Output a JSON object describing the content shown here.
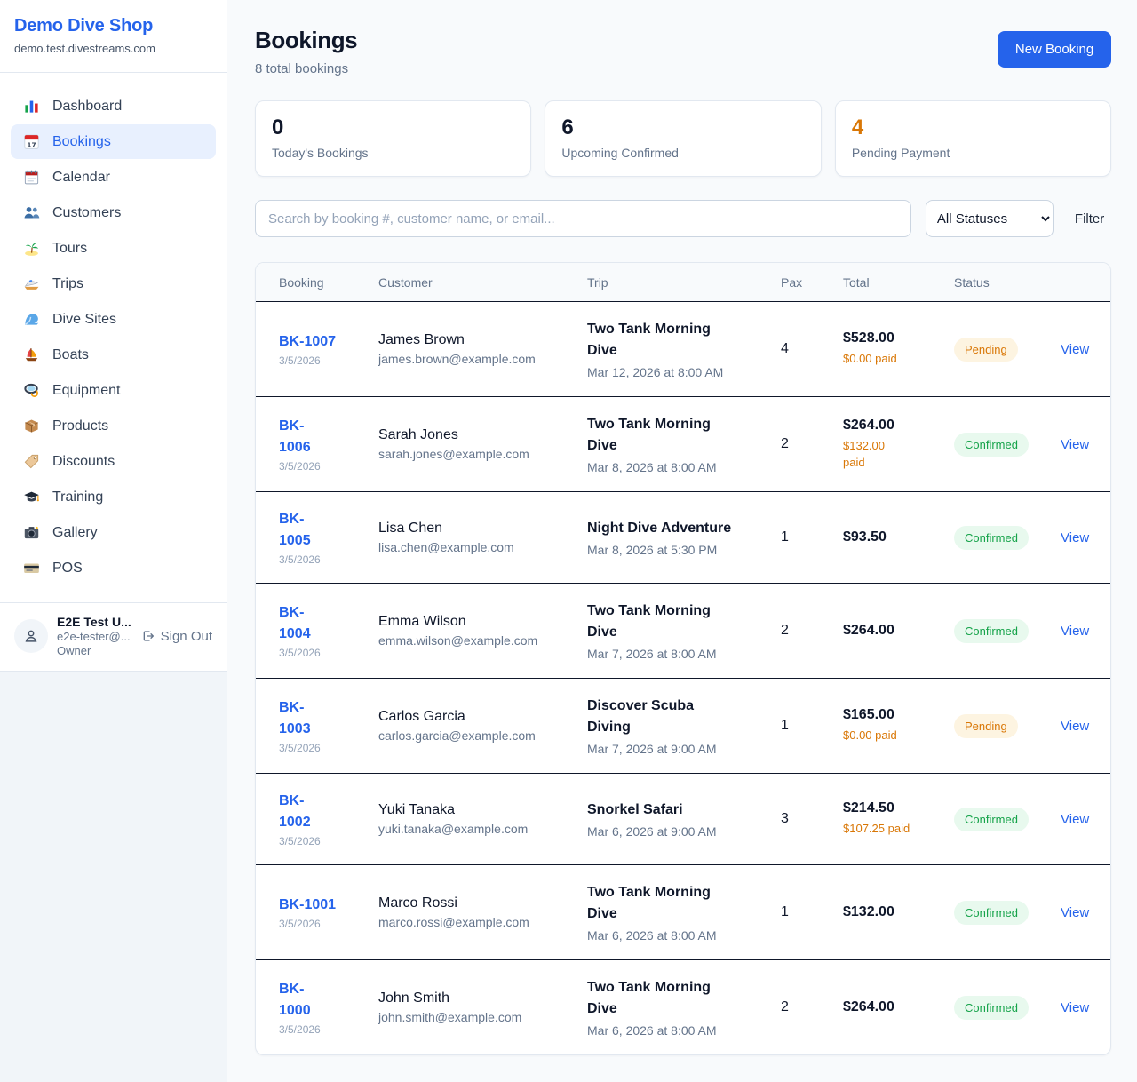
{
  "colors": {
    "accent": "#2563eb",
    "pending_text": "#d97706",
    "pending_bg": "#fdf4e1",
    "confirmed_text": "#16a34a",
    "confirmed_bg": "#e8f9ee",
    "stat_warning": "#d97706"
  },
  "sidebar": {
    "shop_name": "Demo Dive Shop",
    "domain": "demo.test.divestreams.com",
    "items": [
      {
        "icon": "bar-chart-icon",
        "label": "Dashboard",
        "active": false
      },
      {
        "icon": "calendar-17-icon",
        "label": "Bookings",
        "active": true
      },
      {
        "icon": "calendar-spiral-icon",
        "label": "Calendar",
        "active": false
      },
      {
        "icon": "users-icon",
        "label": "Customers",
        "active": false
      },
      {
        "icon": "island-icon",
        "label": "Tours",
        "active": false
      },
      {
        "icon": "speedboat-icon",
        "label": "Trips",
        "active": false
      },
      {
        "icon": "wave-icon",
        "label": "Dive Sites",
        "active": false
      },
      {
        "icon": "sailboat-icon",
        "label": "Boats",
        "active": false
      },
      {
        "icon": "dive-mask-icon",
        "label": "Equipment",
        "active": false
      },
      {
        "icon": "package-icon",
        "label": "Products",
        "active": false
      },
      {
        "icon": "tag-icon",
        "label": "Discounts",
        "active": false
      },
      {
        "icon": "grad-cap-icon",
        "label": "Training",
        "active": false
      },
      {
        "icon": "camera-icon",
        "label": "Gallery",
        "active": false
      },
      {
        "icon": "credit-card-icon",
        "label": "POS",
        "active": false
      }
    ],
    "user": {
      "name": "E2E Test U...",
      "email": "e2e-tester@...",
      "role": "Owner",
      "sign_out_label": "Sign Out"
    }
  },
  "header": {
    "title": "Bookings",
    "subtitle": "8 total bookings",
    "new_booking_label": "New Booking"
  },
  "stats": [
    {
      "value": "0",
      "label": "Today's Bookings",
      "value_color": "#0f172a"
    },
    {
      "value": "6",
      "label": "Upcoming Confirmed",
      "value_color": "#0f172a"
    },
    {
      "value": "4",
      "label": "Pending Payment",
      "value_color": "#d97706"
    }
  ],
  "filters": {
    "search_placeholder": "Search by booking #, customer name, or email...",
    "status_selected": "All Statuses",
    "filter_label": "Filter"
  },
  "table": {
    "headers": [
      "Booking",
      "Customer",
      "Trip",
      "Pax",
      "Total",
      "Status"
    ],
    "view_label": "View",
    "rows": [
      {
        "booking_id": "BK-1007",
        "booking_date": "3/5/2026",
        "customer_name": "James Brown",
        "customer_email": "james.brown@example.com",
        "trip_name": "Two Tank Morning\nDive",
        "trip_datetime": "Mar 12, 2026 at 8:00 AM",
        "pax": "4",
        "total": "$528.00",
        "paid": "$0.00 paid",
        "status": {
          "label": "Pending",
          "kind": "pending"
        }
      },
      {
        "booking_id": "BK-\n1006",
        "booking_date": "3/5/2026",
        "customer_name": "Sarah Jones",
        "customer_email": "sarah.jones@example.com",
        "trip_name": "Two Tank Morning\nDive",
        "trip_datetime": "Mar 8, 2026 at 8:00 AM",
        "pax": "2",
        "total": "$264.00",
        "paid": "$132.00\npaid",
        "status": {
          "label": "Confirmed",
          "kind": "confirmed"
        }
      },
      {
        "booking_id": "BK-\n1005",
        "booking_date": "3/5/2026",
        "customer_name": "Lisa Chen",
        "customer_email": "lisa.chen@example.com",
        "trip_name": "Night Dive Adventure",
        "trip_datetime": "Mar 8, 2026 at 5:30 PM",
        "pax": "1",
        "total": "$93.50",
        "paid": "",
        "status": {
          "label": "Confirmed",
          "kind": "confirmed"
        }
      },
      {
        "booking_id": "BK-\n1004",
        "booking_date": "3/5/2026",
        "customer_name": "Emma Wilson",
        "customer_email": "emma.wilson@example.com",
        "trip_name": "Two Tank Morning\nDive",
        "trip_datetime": "Mar 7, 2026 at 8:00 AM",
        "pax": "2",
        "total": "$264.00",
        "paid": "",
        "status": {
          "label": "Confirmed",
          "kind": "confirmed"
        }
      },
      {
        "booking_id": "BK-\n1003",
        "booking_date": "3/5/2026",
        "customer_name": "Carlos Garcia",
        "customer_email": "carlos.garcia@example.com",
        "trip_name": "Discover Scuba\nDiving",
        "trip_datetime": "Mar 7, 2026 at 9:00 AM",
        "pax": "1",
        "total": "$165.00",
        "paid": "$0.00 paid",
        "status": {
          "label": "Pending",
          "kind": "pending"
        }
      },
      {
        "booking_id": "BK-\n1002",
        "booking_date": "3/5/2026",
        "customer_name": "Yuki Tanaka",
        "customer_email": "yuki.tanaka@example.com",
        "trip_name": "Snorkel Safari",
        "trip_datetime": "Mar 6, 2026 at 9:00 AM",
        "pax": "3",
        "total": "$214.50",
        "paid": "$107.25 paid",
        "status": {
          "label": "Confirmed",
          "kind": "confirmed"
        }
      },
      {
        "booking_id": "BK-1001",
        "booking_date": "3/5/2026",
        "customer_name": "Marco Rossi",
        "customer_email": "marco.rossi@example.com",
        "trip_name": "Two Tank Morning\nDive",
        "trip_datetime": "Mar 6, 2026 at 8:00 AM",
        "pax": "1",
        "total": "$132.00",
        "paid": "",
        "status": {
          "label": "Confirmed",
          "kind": "confirmed"
        }
      },
      {
        "booking_id": "BK-\n1000",
        "booking_date": "3/5/2026",
        "customer_name": "John Smith",
        "customer_email": "john.smith@example.com",
        "trip_name": "Two Tank Morning\nDive",
        "trip_datetime": "Mar 6, 2026 at 8:00 AM",
        "pax": "2",
        "total": "$264.00",
        "paid": "",
        "status": {
          "label": "Confirmed",
          "kind": "confirmed"
        }
      }
    ]
  }
}
